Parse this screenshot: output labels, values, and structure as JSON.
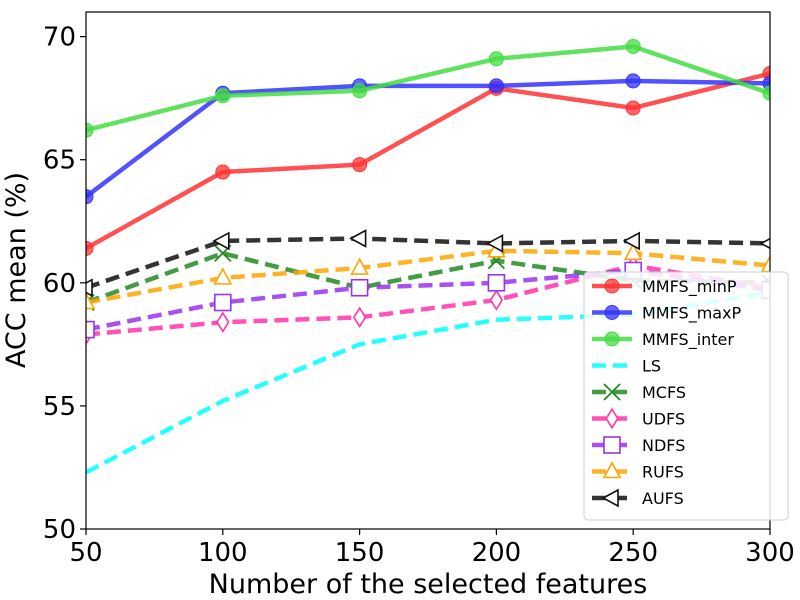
{
  "chart_data": {
    "type": "line",
    "title": "",
    "xlabel": "Number of the selected features",
    "ylabel": "ACC mean (%)",
    "x": [
      50,
      100,
      150,
      200,
      250,
      300
    ],
    "xlim": [
      50,
      300
    ],
    "ylim": [
      50,
      71
    ],
    "xticks": [
      50,
      100,
      150,
      200,
      250,
      300
    ],
    "yticks": [
      50,
      55,
      60,
      65,
      70
    ],
    "legend_position": "lower-right",
    "grid": false,
    "series": [
      {
        "name": "MMFS_minP",
        "color": "#ff3333",
        "linestyle": "solid",
        "marker": "circle",
        "values": [
          61.4,
          64.5,
          64.8,
          67.9,
          67.1,
          68.5
        ]
      },
      {
        "name": "MMFS_maxP",
        "color": "#3333ff",
        "linestyle": "solid",
        "marker": "circle",
        "values": [
          63.5,
          67.7,
          68.0,
          68.0,
          68.2,
          68.1
        ]
      },
      {
        "name": "MMFS_inter",
        "color": "#44dd44",
        "linestyle": "solid",
        "marker": "circle",
        "values": [
          66.2,
          67.6,
          67.8,
          69.1,
          69.6,
          67.7
        ]
      },
      {
        "name": "LS",
        "color": "#00ffff",
        "linestyle": "dashed",
        "marker": "none",
        "values": [
          52.3,
          55.2,
          57.5,
          58.5,
          58.7,
          59.6
        ]
      },
      {
        "name": "MCFS",
        "color": "#228b22",
        "linestyle": "dashed",
        "marker": "x",
        "values": [
          59.2,
          61.2,
          59.8,
          60.9,
          60.1,
          60.0
        ]
      },
      {
        "name": "UDFS",
        "color": "#ff33aa",
        "linestyle": "dashed",
        "marker": "diamond",
        "values": [
          57.9,
          58.4,
          58.6,
          59.3,
          60.7,
          59.8
        ]
      },
      {
        "name": "NDFS",
        "color": "#9933ee",
        "linestyle": "dashed",
        "marker": "square",
        "values": [
          58.1,
          59.2,
          59.8,
          60.0,
          60.5,
          59.7
        ]
      },
      {
        "name": "RUFS",
        "color": "#ffa500",
        "linestyle": "dashed",
        "marker": "triangle-up",
        "values": [
          59.2,
          60.2,
          60.6,
          61.3,
          61.2,
          60.7
        ]
      },
      {
        "name": "AUFS",
        "color": "#111111",
        "linestyle": "dashed",
        "marker": "triangle-left",
        "values": [
          59.8,
          61.7,
          61.8,
          61.6,
          61.7,
          61.6
        ]
      }
    ]
  }
}
